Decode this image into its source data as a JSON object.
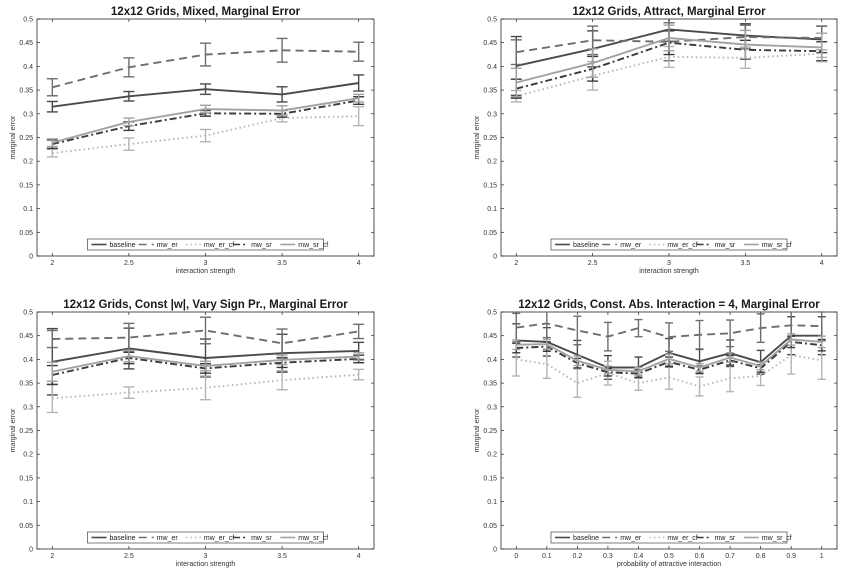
{
  "chart_data": [
    {
      "type": "line",
      "title": "12x12 Grids, Mixed, Marginal Error",
      "xlabel": "interaction strength",
      "ylabel": "marginal error",
      "x": [
        2,
        2.5,
        3,
        3.5,
        4
      ],
      "xticklabels": [
        "2",
        "2.5",
        "3",
        "3.5",
        "4"
      ],
      "xlim": [
        1.9,
        4.1
      ],
      "ylim": [
        0,
        0.5
      ],
      "yticks": [
        0,
        0.05,
        0.1,
        0.15,
        0.2,
        0.25,
        0.3,
        0.35,
        0.4,
        0.45,
        0.5
      ],
      "yticklabels": [
        "0",
        "0.05",
        "0.1",
        "0.15",
        "0.2",
        "0.25",
        "0.3",
        "0.35",
        "0.4",
        "0.45",
        "0.5"
      ],
      "grid": false,
      "legend": "bottom",
      "series": [
        {
          "name": "baseline",
          "values": [
            0.315,
            0.337,
            0.352,
            0.341,
            0.365
          ],
          "err": [
            0.011,
            0.01,
            0.011,
            0.016,
            0.017
          ]
        },
        {
          "name": "mw_er",
          "values": [
            0.356,
            0.398,
            0.425,
            0.434,
            0.431
          ],
          "err": [
            0.018,
            0.02,
            0.024,
            0.025,
            0.02
          ]
        },
        {
          "name": "mw_er_cf",
          "values": [
            0.217,
            0.236,
            0.254,
            0.291,
            0.295
          ],
          "err": [
            0.008,
            0.013,
            0.013,
            0.008,
            0.02
          ]
        },
        {
          "name": "mw_sr",
          "values": [
            0.236,
            0.274,
            0.301,
            0.3,
            0.328
          ],
          "err": [
            0.009,
            0.009,
            0.006,
            0.007,
            0.008
          ]
        },
        {
          "name": "mw_sr_cf",
          "values": [
            0.239,
            0.283,
            0.31,
            0.307,
            0.333
          ],
          "err": [
            0.008,
            0.008,
            0.008,
            0.01,
            0.008
          ]
        }
      ]
    },
    {
      "type": "line",
      "title": "12x12 Grids, Attract, Marginal Error",
      "xlabel": "interaction strength",
      "ylabel": "marginal error",
      "x": [
        2,
        2.5,
        3,
        3.5,
        4
      ],
      "xticklabels": [
        "2",
        "2.5",
        "3",
        "3.5",
        "4"
      ],
      "xlim": [
        1.9,
        4.1
      ],
      "ylim": [
        0,
        0.5
      ],
      "yticks": [
        0,
        0.05,
        0.1,
        0.15,
        0.2,
        0.25,
        0.3,
        0.35,
        0.4,
        0.45,
        0.5
      ],
      "yticklabels": [
        "0",
        "0.05",
        "0.1",
        "0.15",
        "0.2",
        "0.25",
        "0.3",
        "0.35",
        "0.4",
        "0.45",
        "0.5"
      ],
      "grid": false,
      "legend": "bottom",
      "series": [
        {
          "name": "baseline",
          "values": [
            0.401,
            0.437,
            0.478,
            0.465,
            0.457
          ],
          "err": [
            0.062,
            0.038,
            0.025,
            0.025,
            0.028
          ]
        },
        {
          "name": "mw_er",
          "values": [
            0.43,
            0.455,
            0.452,
            0.462,
            0.46
          ],
          "err": [
            0.026,
            0.03,
            0.04,
            0.025,
            0.025
          ]
        },
        {
          "name": "mw_er_cf",
          "values": [
            0.337,
            0.38,
            0.42,
            0.418,
            0.427
          ],
          "err": [
            0.012,
            0.03,
            0.022,
            0.022,
            0.008
          ]
        },
        {
          "name": "mw_sr",
          "values": [
            0.353,
            0.395,
            0.45,
            0.435,
            0.432
          ],
          "err": [
            0.02,
            0.026,
            0.025,
            0.02,
            0.02
          ]
        },
        {
          "name": "mw_sr_cf",
          "values": [
            0.366,
            0.407,
            0.46,
            0.446,
            0.44
          ],
          "err": [
            0.03,
            0.03,
            0.027,
            0.03,
            0.03
          ]
        }
      ]
    },
    {
      "type": "line",
      "title": "12x12 Grids, Const |w|, Vary Sign Pr., Marginal Error",
      "xlabel": "interaction strength",
      "ylabel": "marginal error",
      "x": [
        2,
        2.5,
        3,
        3.5,
        4
      ],
      "xticklabels": [
        "2",
        "2.5",
        "3",
        "3.5",
        "4"
      ],
      "xlim": [
        1.9,
        4.1
      ],
      "ylim": [
        0,
        0.5
      ],
      "yticks": [
        0,
        0.05,
        0.1,
        0.15,
        0.2,
        0.25,
        0.3,
        0.35,
        0.4,
        0.45,
        0.5
      ],
      "yticklabels": [
        "0",
        "0.05",
        "0.1",
        "0.15",
        "0.2",
        "0.25",
        "0.3",
        "0.35",
        "0.4",
        "0.45",
        "0.5"
      ],
      "grid": false,
      "legend": "bottom",
      "series": [
        {
          "name": "baseline",
          "values": [
            0.395,
            0.423,
            0.403,
            0.413,
            0.418
          ],
          "err": [
            0.07,
            0.043,
            0.04,
            0.04,
            0.018
          ]
        },
        {
          "name": "mw_er",
          "values": [
            0.443,
            0.446,
            0.461,
            0.434,
            0.459
          ],
          "err": [
            0.018,
            0.03,
            0.028,
            0.03,
            0.015
          ]
        },
        {
          "name": "mw_er_cf",
          "values": [
            0.318,
            0.33,
            0.34,
            0.356,
            0.368
          ],
          "err": [
            0.03,
            0.012,
            0.025,
            0.02,
            0.011
          ]
        },
        {
          "name": "mw_sr",
          "values": [
            0.367,
            0.403,
            0.381,
            0.393,
            0.401
          ],
          "err": [
            0.02,
            0.012,
            0.01,
            0.01,
            0.008
          ]
        },
        {
          "name": "mw_sr_cf",
          "values": [
            0.374,
            0.407,
            0.386,
            0.399,
            0.406
          ],
          "err": [
            0.02,
            0.012,
            0.01,
            0.01,
            0.008
          ]
        }
      ]
    },
    {
      "type": "line",
      "title": "12x12 Grids, Const. Abs. Interaction = 4, Marginal Error",
      "xlabel": "probability of attractive interaction",
      "ylabel": "marginal error",
      "x": [
        0,
        0.1,
        0.2,
        0.3,
        0.4,
        0.5,
        0.6,
        0.7,
        0.8,
        0.9,
        1
      ],
      "xticklabels": [
        "0",
        "0.1",
        "0.2",
        "0.3",
        "0.4",
        "0.5",
        "0.6",
        "0.7",
        "0.8",
        "0.9",
        "1"
      ],
      "xlim": [
        -0.05,
        1.05
      ],
      "ylim": [
        0,
        0.5
      ],
      "yticks": [
        0,
        0.05,
        0.1,
        0.15,
        0.2,
        0.25,
        0.3,
        0.35,
        0.4,
        0.45,
        0.5
      ],
      "yticklabels": [
        "0",
        "0.05",
        "0.1",
        "0.15",
        "0.2",
        "0.25",
        "0.3",
        "0.35",
        "0.4",
        "0.45",
        "0.5"
      ],
      "grid": false,
      "legend": "bottom",
      "series": [
        {
          "name": "baseline",
          "values": [
            0.44,
            0.437,
            0.41,
            0.383,
            0.383,
            0.414,
            0.396,
            0.413,
            0.394,
            0.45,
            0.45
          ],
          "err": [
            0.035,
            0.03,
            0.03,
            0.025,
            0.022,
            0.03,
            0.025,
            0.028,
            0.025,
            0.04,
            0.04
          ]
        },
        {
          "name": "mw_er",
          "values": [
            0.467,
            0.476,
            0.461,
            0.448,
            0.466,
            0.447,
            0.452,
            0.455,
            0.466,
            0.472,
            0.47
          ],
          "err": [
            0.03,
            0.03,
            0.03,
            0.03,
            0.018,
            0.03,
            0.03,
            0.028,
            0.03,
            0.03,
            0.03
          ]
        },
        {
          "name": "mw_er_cf",
          "values": [
            0.4,
            0.39,
            0.35,
            0.371,
            0.35,
            0.362,
            0.343,
            0.36,
            0.365,
            0.409,
            0.398
          ],
          "err": [
            0.035,
            0.03,
            0.03,
            0.025,
            0.015,
            0.025,
            0.02,
            0.028,
            0.02,
            0.04,
            0.04
          ]
        },
        {
          "name": "mw_sr",
          "values": [
            0.424,
            0.427,
            0.392,
            0.373,
            0.37,
            0.395,
            0.378,
            0.398,
            0.381,
            0.437,
            0.43
          ],
          "err": [
            0.01,
            0.01,
            0.01,
            0.008,
            0.008,
            0.01,
            0.008,
            0.01,
            0.008,
            0.012,
            0.012
          ]
        },
        {
          "name": "mw_sr_cf",
          "values": [
            0.431,
            0.432,
            0.397,
            0.378,
            0.375,
            0.401,
            0.383,
            0.404,
            0.386,
            0.442,
            0.437
          ],
          "err": [
            0.01,
            0.01,
            0.01,
            0.008,
            0.008,
            0.01,
            0.008,
            0.01,
            0.008,
            0.012,
            0.012
          ]
        }
      ]
    }
  ]
}
